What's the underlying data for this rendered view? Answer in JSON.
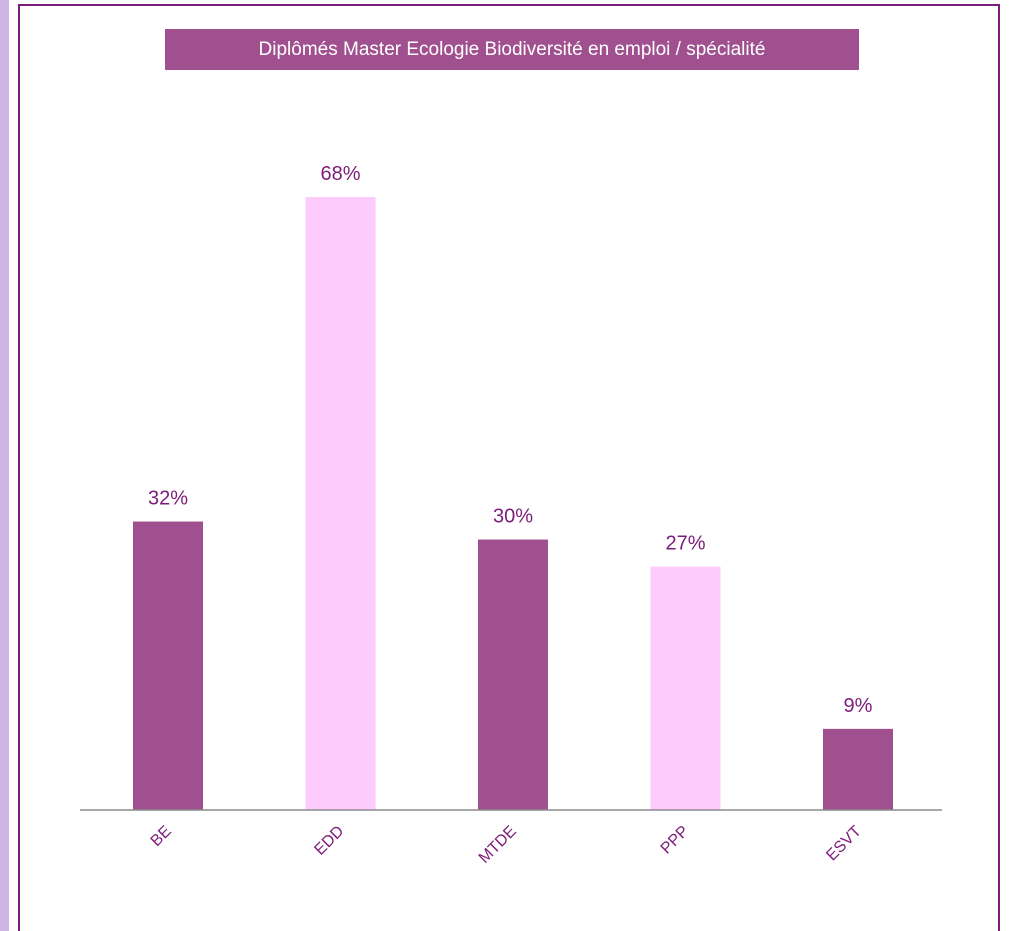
{
  "chart_data": {
    "type": "bar",
    "title": "Diplômés Master Ecologie Biodiversité en emploi / spécialité",
    "xlabel": "",
    "ylabel": "",
    "categories": [
      "BE",
      "EDD",
      "MTDE",
      "PPP",
      "ESVT"
    ],
    "values": [
      32,
      68,
      30,
      27,
      9
    ],
    "data_labels": [
      "32%",
      "68%",
      "30%",
      "27%",
      "9%"
    ],
    "unit": "%",
    "ylim": [
      0,
      80
    ],
    "grid": false,
    "legend": "none",
    "colors": [
      "#a1508f",
      "#fecbfd",
      "#a1508f",
      "#fecbfd",
      "#a1508f"
    ],
    "label_color": "#7d1c7a",
    "axis_color": "#8c8c8c"
  }
}
